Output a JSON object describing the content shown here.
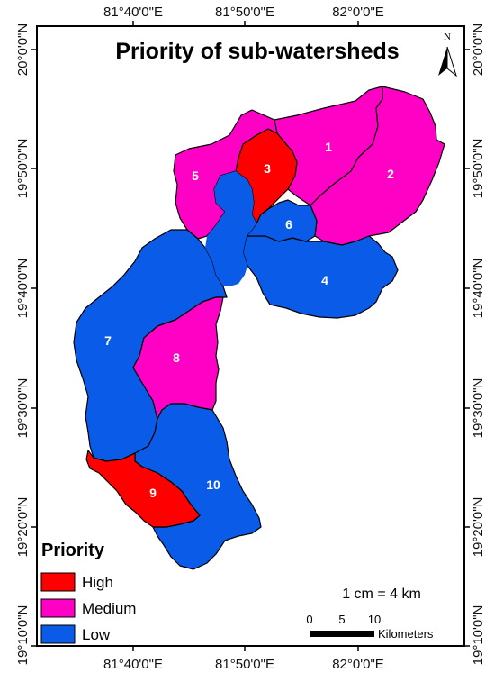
{
  "title": "Priority of sub-watersheds",
  "axes": {
    "top": [
      "81°40'0\"E",
      "81°50'0\"E",
      "82°0'0\"E"
    ],
    "bottom": [
      "81°40'0\"E",
      "81°50'0\"E",
      "82°0'0\"E"
    ],
    "left": [
      "20°0'0\"N",
      "19°50'0\"N",
      "19°40'0\"N",
      "19°30'0\"N",
      "19°20'0\"N",
      "19°10'0\"N"
    ],
    "right": [
      "20°0'0\"N",
      "19°50'0\"N",
      "19°40'0\"N",
      "19°30'0\"N",
      "19°20'0\"N",
      "19°10'0\"N"
    ]
  },
  "north_arrow": {
    "letter": "N",
    "icon": "north-arrow-icon"
  },
  "colors": {
    "High": "#ff0000",
    "Medium": "#ff00c5",
    "Low": "#0a5be8"
  },
  "watersheds": [
    {
      "id": "1",
      "priority": "Medium"
    },
    {
      "id": "2",
      "priority": "Medium"
    },
    {
      "id": "3",
      "priority": "High"
    },
    {
      "id": "4",
      "priority": "Low"
    },
    {
      "id": "5",
      "priority": "Medium"
    },
    {
      "id": "6",
      "priority": "Low"
    },
    {
      "id": "7",
      "priority": "Low"
    },
    {
      "id": "8",
      "priority": "Medium"
    },
    {
      "id": "9",
      "priority": "High"
    },
    {
      "id": "10",
      "priority": "Low"
    }
  ],
  "legend": {
    "title": "Priority",
    "items": [
      {
        "label": "High",
        "color": "#ff0000"
      },
      {
        "label": "Medium",
        "color": "#ff00c5"
      },
      {
        "label": "Low",
        "color": "#0a5be8"
      }
    ]
  },
  "scale": {
    "ratio_text": "1 cm = 4 km",
    "ticks": [
      "0",
      "5",
      "10"
    ],
    "unit": "Kilometers"
  }
}
